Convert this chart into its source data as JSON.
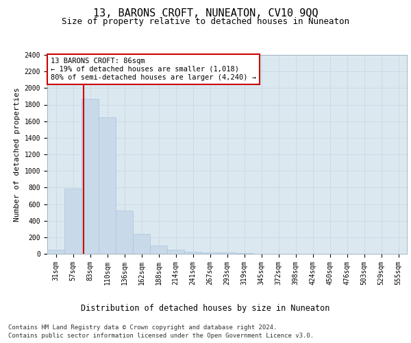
{
  "title": "13, BARONS CROFT, NUNEATON, CV10 9QQ",
  "subtitle": "Size of property relative to detached houses in Nuneaton",
  "xlabel": "Distribution of detached houses by size in Nuneaton",
  "ylabel": "Number of detached properties",
  "categories": [
    "31sqm",
    "57sqm",
    "83sqm",
    "110sqm",
    "136sqm",
    "162sqm",
    "188sqm",
    "214sqm",
    "241sqm",
    "267sqm",
    "293sqm",
    "319sqm",
    "345sqm",
    "372sqm",
    "398sqm",
    "424sqm",
    "450sqm",
    "476sqm",
    "503sqm",
    "529sqm",
    "555sqm"
  ],
  "values": [
    50,
    790,
    1870,
    1650,
    520,
    240,
    100,
    50,
    25,
    20,
    20,
    5,
    2,
    1,
    1,
    1,
    1,
    1,
    1,
    1,
    1
  ],
  "bar_color": "#c8daea",
  "bar_edge_color": "#aac4d8",
  "marker_line_color": "#cc0000",
  "annotation_text": "13 BARONS CROFT: 86sqm\n← 19% of detached houses are smaller (1,018)\n80% of semi-detached houses are larger (4,240) →",
  "annotation_box_facecolor": "#ffffff",
  "annotation_box_edgecolor": "#cc0000",
  "ylim": [
    0,
    2400
  ],
  "yticks": [
    0,
    200,
    400,
    600,
    800,
    1000,
    1200,
    1400,
    1600,
    1800,
    2000,
    2200,
    2400
  ],
  "grid_color": "#c8d4de",
  "plot_bg_color": "#dce8f0",
  "fig_bg_color": "#ffffff",
  "title_fontsize": 11,
  "subtitle_fontsize": 9,
  "xlabel_fontsize": 8.5,
  "ylabel_fontsize": 8,
  "tick_fontsize": 7,
  "annotation_fontsize": 7.5,
  "footer_fontsize": 6.5,
  "footer_line1": "Contains HM Land Registry data © Crown copyright and database right 2024.",
  "footer_line2": "Contains public sector information licensed under the Open Government Licence v3.0."
}
